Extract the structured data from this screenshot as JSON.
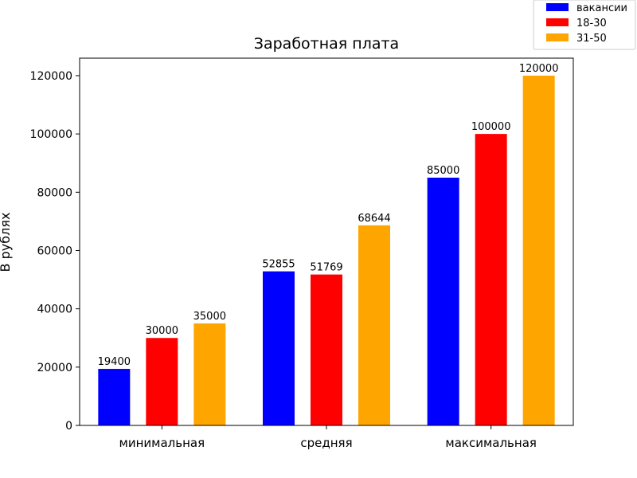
{
  "chart_data": {
    "type": "bar",
    "title": "Заработная плата",
    "xlabel": "",
    "ylabel": "В рублях",
    "categories": [
      "минимальная",
      "средняя",
      "максимальная"
    ],
    "series": [
      {
        "name": "вакансии",
        "color": "#0000ff",
        "values": [
          19400,
          52855,
          85000
        ]
      },
      {
        "name": "18-30",
        "color": "#ff0000",
        "values": [
          30000,
          51769,
          100000
        ]
      },
      {
        "name": "31-50",
        "color": "#ffa500",
        "values": [
          35000,
          68644,
          120000
        ]
      }
    ],
    "ylim": [
      0,
      126000
    ],
    "yticks": [
      0,
      20000,
      40000,
      60000,
      80000,
      100000,
      120000
    ],
    "grid": false,
    "legend_position": "top-right",
    "data_labels": true
  }
}
